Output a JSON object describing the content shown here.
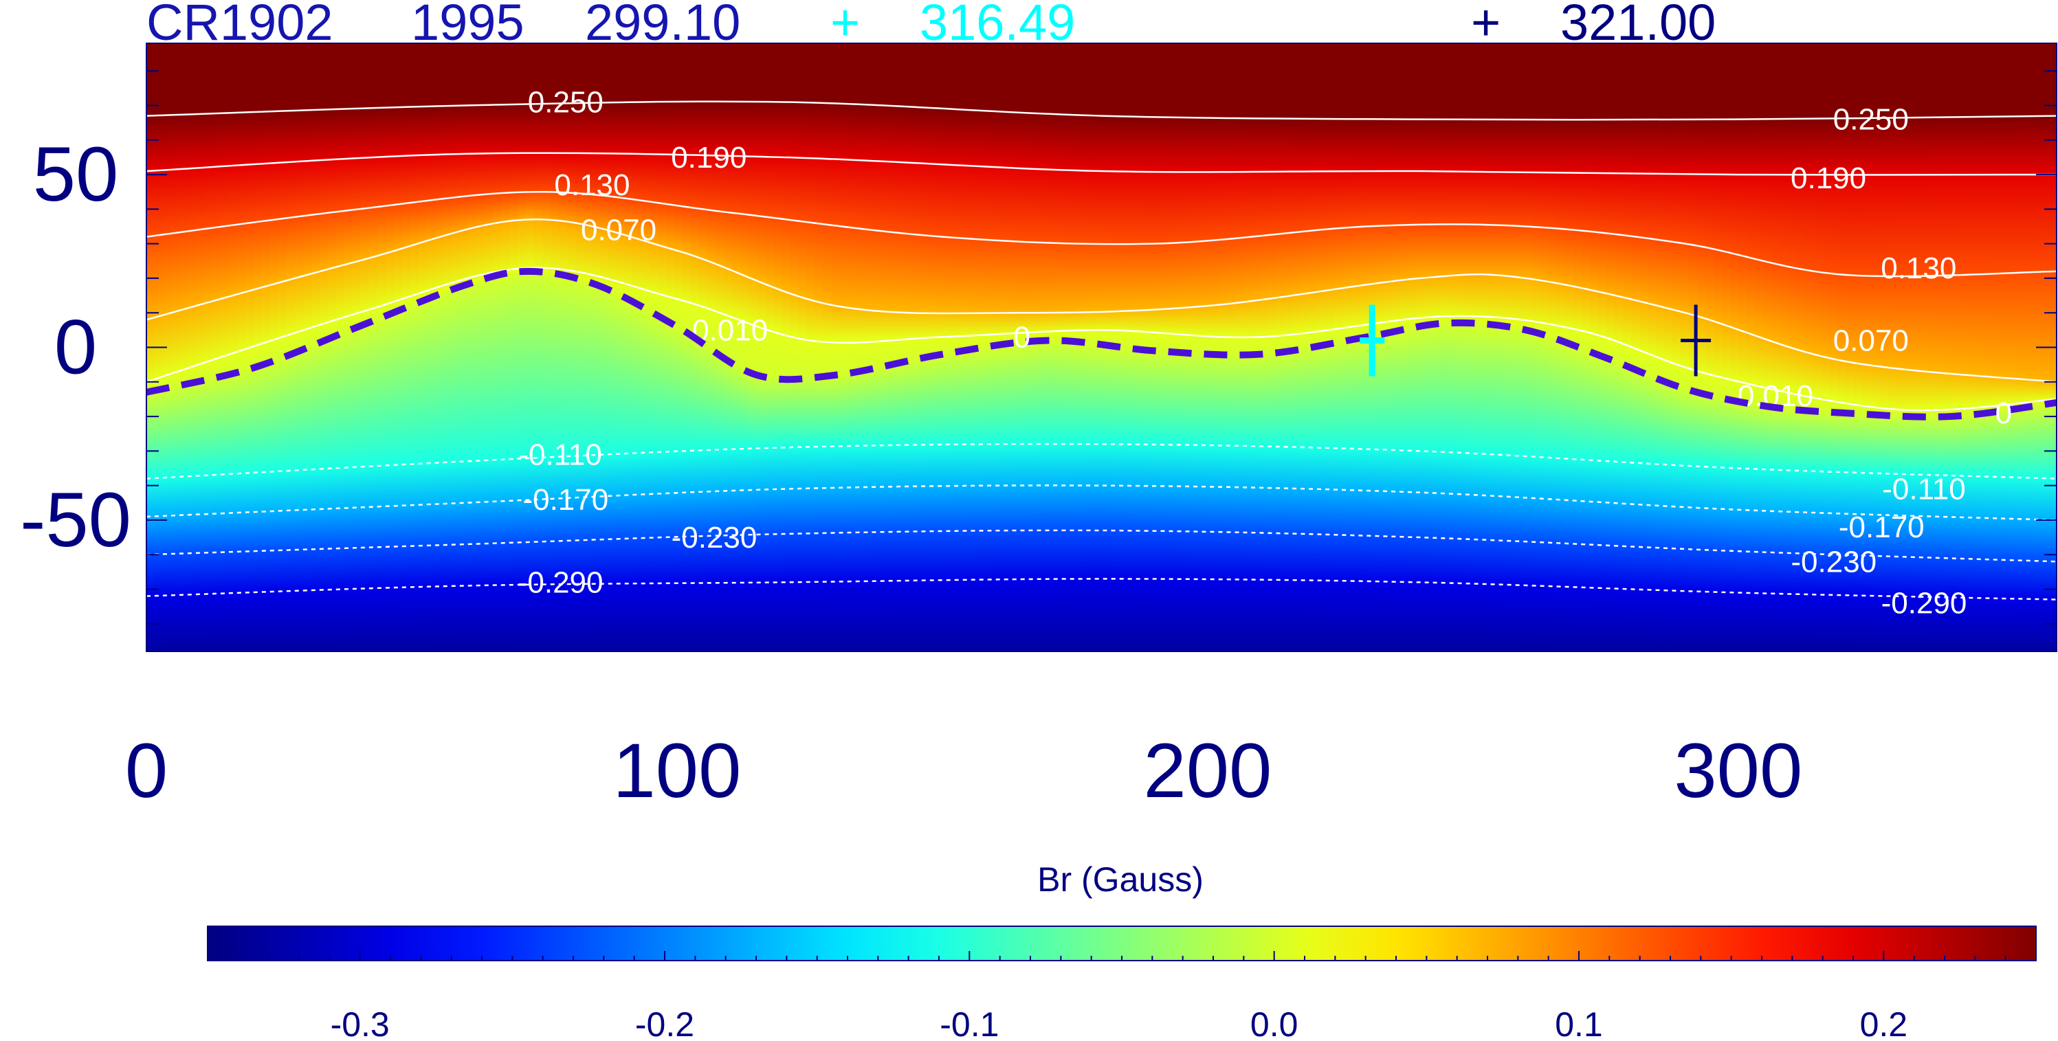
{
  "header": {
    "rotation": "CR1902",
    "year": "1995",
    "lon_a": "299.10",
    "marker_cyan": "+",
    "lon_cyan": "316.49",
    "marker_navy": "+",
    "lon_navy": "321.00"
  },
  "colors": {
    "header_text": "#1515b0",
    "cyan": "#00ffff",
    "navy": "#000080",
    "neutral_line": "#4a10d8",
    "contour": "#ffffff"
  },
  "chart_data": {
    "type": "heatmap",
    "title": "",
    "xlabel": "",
    "ylabel": "",
    "xlim": [
      0,
      360
    ],
    "ylim": [
      -88,
      88
    ],
    "x_ticks": [
      0,
      100,
      200,
      300
    ],
    "x_tick_labels": [
      "0",
      "100",
      "200",
      "300"
    ],
    "y_ticks": [
      50,
      0,
      -50
    ],
    "y_tick_labels": [
      "50",
      "0",
      "-50"
    ],
    "colorbar": {
      "label": "Br (Gauss)",
      "range": [
        -0.35,
        0.25
      ],
      "ticks": [
        -0.3,
        -0.2,
        -0.1,
        0.0,
        0.1,
        0.2
      ],
      "tick_labels": [
        "-0.3",
        "-0.2",
        "-0.1",
        "0.0",
        "0.1",
        "0.2"
      ],
      "colormap": "jet"
    },
    "neutral_line": {
      "label": "0",
      "x": [
        0,
        20,
        40,
        60,
        72,
        85,
        100,
        115,
        130,
        150,
        170,
        190,
        210,
        230,
        245,
        260,
        275,
        290,
        305,
        320,
        340,
        360
      ],
      "y": [
        -13,
        -6,
        6,
        18,
        22,
        18,
        6,
        -8,
        -8,
        -2,
        2,
        -1,
        -2,
        3,
        7,
        5,
        -3,
        -12,
        -17,
        -19,
        -20,
        -16
      ]
    },
    "contours": [
      {
        "level": 0.25,
        "label": "0.250",
        "style": "solid",
        "x": [
          0,
          60,
          120,
          180,
          240,
          300,
          360
        ],
        "y": [
          67,
          70,
          71,
          67,
          66,
          66,
          67
        ],
        "label_positions": [
          [
            79,
            71
          ],
          [
            325,
            66
          ]
        ]
      },
      {
        "level": 0.19,
        "label": "0.190",
        "style": "solid",
        "x": [
          0,
          60,
          120,
          180,
          240,
          300,
          360
        ],
        "y": [
          51,
          56,
          55,
          51,
          51,
          50,
          50
        ],
        "label_positions": [
          [
            106,
            55
          ],
          [
            317,
            49
          ]
        ]
      },
      {
        "level": 0.13,
        "label": "0.130",
        "style": "solid",
        "x": [
          0,
          40,
          75,
          110,
          150,
          190,
          230,
          260,
          290,
          320,
          360
        ],
        "y": [
          32,
          40,
          45,
          39,
          32,
          30,
          35,
          35,
          30,
          21,
          22
        ],
        "label_positions": [
          [
            84,
            47
          ],
          [
            334,
            23
          ]
        ]
      },
      {
        "level": 0.07,
        "label": "0.070",
        "style": "solid",
        "x": [
          0,
          40,
          72,
          100,
          130,
          165,
          200,
          240,
          260,
          290,
          320,
          360
        ],
        "y": [
          8,
          25,
          37,
          28,
          12,
          10,
          12,
          20,
          20,
          10,
          -4,
          -10
        ],
        "label_positions": [
          [
            89,
            34
          ],
          [
            325,
            2
          ]
        ]
      },
      {
        "level": 0.01,
        "label": "0.010",
        "style": "solid",
        "x": [
          0,
          40,
          72,
          100,
          125,
          150,
          180,
          210,
          245,
          270,
          295,
          330,
          360
        ],
        "y": [
          -10,
          10,
          23,
          14,
          2,
          3,
          5,
          3,
          9,
          5,
          -8,
          -18,
          -15
        ],
        "label_positions": [
          [
            110,
            5
          ],
          [
            307,
            -14
          ]
        ]
      },
      {
        "level": -0.11,
        "label": "-0.110",
        "style": "dotted",
        "x": [
          0,
          60,
          120,
          180,
          240,
          300,
          360
        ],
        "y": [
          -38,
          -33,
          -29,
          -28,
          -30,
          -35,
          -38
        ],
        "label_positions": [
          [
            78,
            -31
          ],
          [
            335,
            -41
          ]
        ]
      },
      {
        "level": -0.17,
        "label": "-0.170",
        "style": "dotted",
        "x": [
          0,
          60,
          120,
          180,
          240,
          300,
          360
        ],
        "y": [
          -49,
          -45,
          -41,
          -40,
          -42,
          -47,
          -50
        ],
        "label_positions": [
          [
            79,
            -44
          ],
          [
            327,
            -52
          ]
        ]
      },
      {
        "level": -0.23,
        "label": "-0.230",
        "style": "dotted",
        "x": [
          0,
          60,
          120,
          180,
          240,
          300,
          360
        ],
        "y": [
          -60,
          -57,
          -54,
          -53,
          -55,
          -59,
          -62
        ],
        "label_positions": [
          [
            107,
            -55
          ],
          [
            318,
            -62
          ]
        ]
      },
      {
        "level": -0.29,
        "label": "-0.290",
        "style": "dotted",
        "x": [
          0,
          60,
          120,
          180,
          240,
          300,
          360
        ],
        "y": [
          -72,
          -69,
          -68,
          -67,
          -68,
          -71,
          -73
        ],
        "label_positions": [
          [
            78,
            -68
          ],
          [
            335,
            -74
          ]
        ]
      }
    ],
    "markers": [
      {
        "name": "cyan-cross",
        "x": 231,
        "y": 2,
        "color": "#00ffff",
        "style": "bar"
      },
      {
        "name": "navy-cross",
        "x": 292,
        "y": 2,
        "color": "#000080",
        "style": "plus"
      }
    ]
  }
}
